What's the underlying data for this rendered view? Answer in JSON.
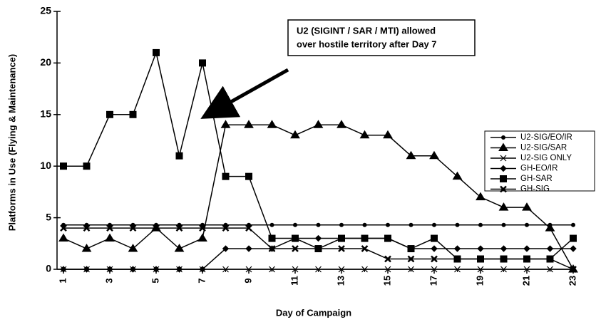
{
  "chart_data": {
    "type": "line",
    "annotation": [
      "U2 (SIGINT / SAR / MTI) allowed",
      "over hostile territory after Day 7"
    ],
    "xlabel": "Day of Campaign",
    "ylabel": "Platforms in Use (Flying & Maintenance)",
    "x": [
      1,
      2,
      3,
      4,
      5,
      6,
      7,
      8,
      9,
      10,
      11,
      12,
      13,
      14,
      15,
      16,
      17,
      18,
      19,
      20,
      21,
      22,
      23
    ],
    "xlim": [
      1,
      23
    ],
    "xticks": [
      1,
      3,
      5,
      7,
      9,
      11,
      13,
      15,
      17,
      19,
      21,
      23
    ],
    "ylim": [
      0,
      25
    ],
    "yticks": [
      0,
      5,
      10,
      15,
      20,
      25
    ],
    "legend": "right",
    "series": [
      {
        "name": "U2-SIG/EO/IR",
        "color": "#000000",
        "marker": "circle",
        "values": [
          4.3,
          4.3,
          4.3,
          4.3,
          4.3,
          4.3,
          4.3,
          4.3,
          4.3,
          4.3,
          4.3,
          4.3,
          4.3,
          4.3,
          4.3,
          4.3,
          4.3,
          4.3,
          4.3,
          4.3,
          4.3,
          4.3,
          4.3
        ]
      },
      {
        "name": "U2-SIG/SAR",
        "color": "#000000",
        "marker": "triangle",
        "values": [
          3,
          2,
          3,
          2,
          4,
          2,
          3,
          14,
          14,
          14,
          13,
          14,
          14,
          13,
          13,
          11,
          11,
          9,
          7,
          6,
          6,
          4,
          0
        ]
      },
      {
        "name": "U2-SIG ONLY",
        "color": "#000000",
        "marker": "thin-x",
        "values": [
          0,
          0,
          0,
          0,
          0,
          0,
          0,
          0,
          0,
          0,
          0,
          0,
          0,
          0,
          0,
          0,
          0,
          0,
          0,
          0,
          0,
          0,
          0
        ]
      },
      {
        "name": "GH-EO/IR",
        "color": "#000000",
        "marker": "diamond",
        "values": [
          0,
          0,
          0,
          0,
          0,
          0,
          0,
          2,
          2,
          2,
          3,
          3,
          3,
          3,
          3,
          2,
          2,
          2,
          2,
          2,
          2,
          2,
          2
        ]
      },
      {
        "name": "GH-SAR",
        "color": "#000000",
        "marker": "square",
        "values": [
          10,
          10,
          15,
          15,
          21,
          11,
          20,
          9,
          9,
          3,
          3,
          2,
          3,
          3,
          3,
          2,
          3,
          1,
          1,
          1,
          1,
          1,
          3
        ]
      },
      {
        "name": "GH-SIG",
        "color": "#000000",
        "marker": "bold-x",
        "values": [
          4,
          4,
          4,
          4,
          4,
          4,
          4,
          4,
          4,
          2,
          2,
          2,
          2,
          2,
          1,
          1,
          1,
          1,
          1,
          1,
          1,
          1,
          0
        ]
      }
    ]
  }
}
